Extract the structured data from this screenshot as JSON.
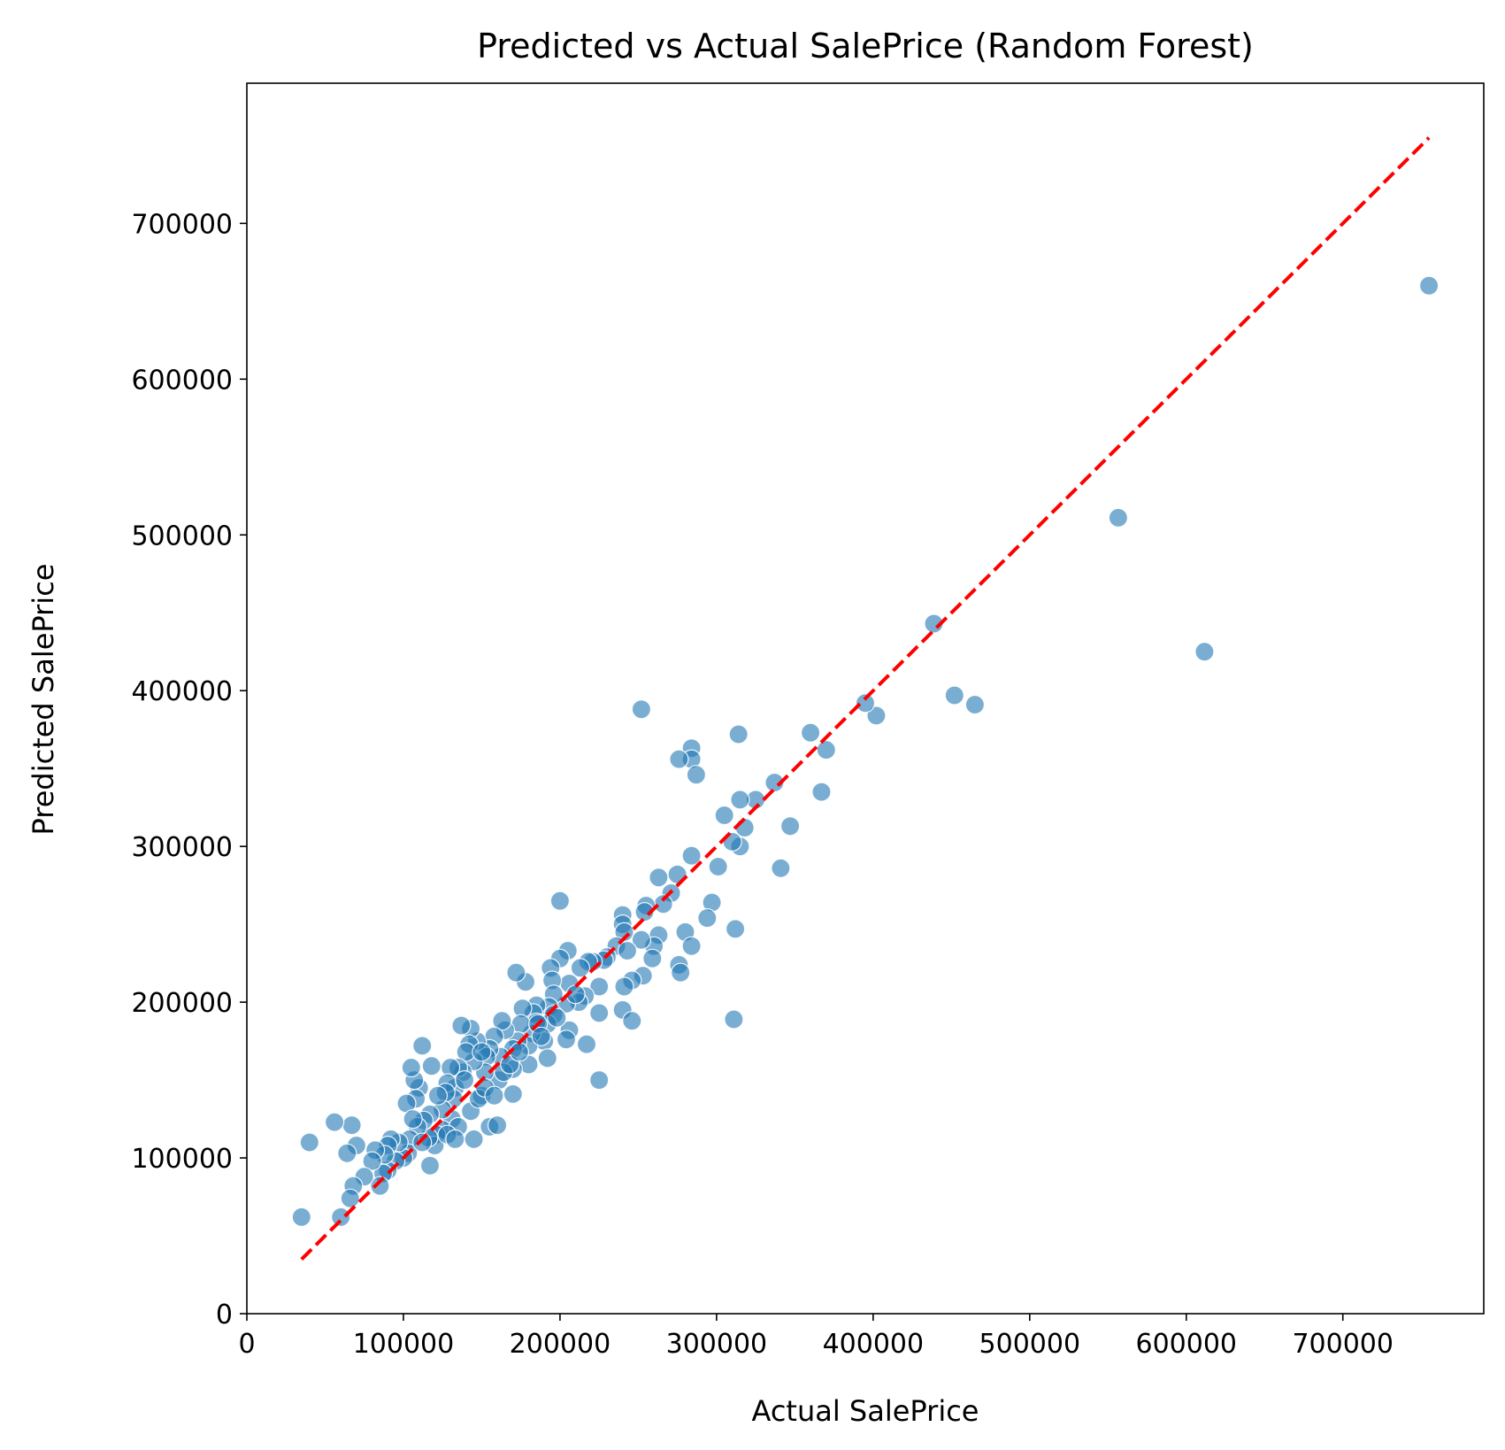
{
  "chart_data": {
    "type": "scatter",
    "title": "Predicted vs Actual SalePrice (Random Forest)",
    "xlabel": "Actual SalePrice",
    "ylabel": "Predicted SalePrice",
    "xlim": [
      0,
      790000
    ],
    "ylim": [
      0,
      790000
    ],
    "xticks": [
      "0",
      "100000",
      "200000",
      "300000",
      "400000",
      "500000",
      "600000",
      "700000"
    ],
    "yticks": [
      "0",
      "100000",
      "200000",
      "300000",
      "400000",
      "500000",
      "600000",
      "700000"
    ],
    "grid": false,
    "point_color": "#1f77b4",
    "point_opacity": 0.6,
    "reference_line": {
      "x": [
        34900,
        755000
      ],
      "y": [
        34900,
        755000
      ],
      "color": "#ff0000",
      "style": "dashed"
    },
    "points": [
      [
        755000,
        660000
      ],
      [
        556581,
        511000
      ],
      [
        611657,
        425000
      ],
      [
        438780,
        443000
      ],
      [
        451950,
        397000
      ],
      [
        465000,
        391000
      ],
      [
        402000,
        384000
      ],
      [
        395000,
        392000
      ],
      [
        370000,
        362000
      ],
      [
        360000,
        373000
      ],
      [
        367000,
        335000
      ],
      [
        347000,
        313000
      ],
      [
        337000,
        341000
      ],
      [
        325000,
        330000
      ],
      [
        315000,
        330000
      ],
      [
        318000,
        312000
      ],
      [
        315000,
        300000
      ],
      [
        310000,
        303000
      ],
      [
        341000,
        286000
      ],
      [
        314000,
        372000
      ],
      [
        284000,
        363000
      ],
      [
        284000,
        356000
      ],
      [
        287000,
        346000
      ],
      [
        276000,
        356000
      ],
      [
        252000,
        388000
      ],
      [
        305000,
        320000
      ],
      [
        301000,
        287000
      ],
      [
        284000,
        294000
      ],
      [
        275000,
        282000
      ],
      [
        271000,
        270000
      ],
      [
        263000,
        280000
      ],
      [
        266000,
        263000
      ],
      [
        297000,
        264000
      ],
      [
        294000,
        254000
      ],
      [
        312000,
        247000
      ],
      [
        311000,
        189000
      ],
      [
        280000,
        245000
      ],
      [
        284000,
        236000
      ],
      [
        276000,
        224000
      ],
      [
        277000,
        219000
      ],
      [
        263000,
        243000
      ],
      [
        260000,
        236000
      ],
      [
        259000,
        228000
      ],
      [
        255000,
        262000
      ],
      [
        254000,
        258000
      ],
      [
        252000,
        240000
      ],
      [
        253000,
        217000
      ],
      [
        246000,
        214000
      ],
      [
        240000,
        256000
      ],
      [
        240000,
        250000
      ],
      [
        241000,
        245000
      ],
      [
        236000,
        236000
      ],
      [
        243000,
        233000
      ],
      [
        241000,
        210000
      ],
      [
        240000,
        195000
      ],
      [
        246000,
        188000
      ],
      [
        230000,
        229000
      ],
      [
        228000,
        227000
      ],
      [
        225000,
        210000
      ],
      [
        225000,
        193000
      ],
      [
        225000,
        150000
      ],
      [
        221000,
        226000
      ],
      [
        218000,
        226000
      ],
      [
        213000,
        222000
      ],
      [
        216000,
        204000
      ],
      [
        212000,
        200000
      ],
      [
        217000,
        173000
      ],
      [
        205000,
        233000
      ],
      [
        200000,
        228000
      ],
      [
        200000,
        265000
      ],
      [
        206000,
        212000
      ],
      [
        204000,
        199000
      ],
      [
        206000,
        182000
      ],
      [
        204000,
        176000
      ],
      [
        194000,
        222000
      ],
      [
        195000,
        214000
      ],
      [
        196000,
        205000
      ],
      [
        193000,
        197000
      ],
      [
        196000,
        192000
      ],
      [
        192000,
        186000
      ],
      [
        190000,
        175000
      ],
      [
        192000,
        164000
      ],
      [
        185000,
        198000
      ],
      [
        183000,
        193000
      ],
      [
        185000,
        187000
      ],
      [
        182000,
        180000
      ],
      [
        180000,
        172000
      ],
      [
        180000,
        160000
      ],
      [
        178000,
        213000
      ],
      [
        176000,
        196000
      ],
      [
        175000,
        186000
      ],
      [
        173000,
        175000
      ],
      [
        172000,
        219000
      ],
      [
        170000,
        170000
      ],
      [
        170000,
        157000
      ],
      [
        170000,
        141000
      ],
      [
        165000,
        182000
      ],
      [
        163000,
        188000
      ],
      [
        162000,
        165000
      ],
      [
        161000,
        150000
      ],
      [
        158000,
        178000
      ],
      [
        155000,
        170000
      ],
      [
        153000,
        165000
      ],
      [
        152000,
        155000
      ],
      [
        150000,
        140000
      ],
      [
        155000,
        120000
      ],
      [
        160000,
        121000
      ],
      [
        147000,
        175000
      ],
      [
        145000,
        162000
      ],
      [
        143000,
        183000
      ],
      [
        142000,
        173000
      ],
      [
        140000,
        168000
      ],
      [
        138000,
        155000
      ],
      [
        137000,
        185000
      ],
      [
        135000,
        158000
      ],
      [
        133000,
        145000
      ],
      [
        132000,
        138000
      ],
      [
        131000,
        125000
      ],
      [
        130000,
        158000
      ],
      [
        128000,
        148000
      ],
      [
        127000,
        142000
      ],
      [
        125000,
        131000
      ],
      [
        125000,
        118000
      ],
      [
        122000,
        140000
      ],
      [
        121000,
        115000
      ],
      [
        120000,
        108000
      ],
      [
        118000,
        159000
      ],
      [
        117000,
        128000
      ],
      [
        116000,
        113000
      ],
      [
        117000,
        95000
      ],
      [
        113000,
        124000
      ],
      [
        112000,
        172000
      ],
      [
        110000,
        145000
      ],
      [
        109000,
        120000
      ],
      [
        108000,
        138000
      ],
      [
        107000,
        150000
      ],
      [
        105000,
        158000
      ],
      [
        104000,
        112000
      ],
      [
        103000,
        103000
      ],
      [
        102000,
        135000
      ],
      [
        100000,
        100000
      ],
      [
        97000,
        110000
      ],
      [
        95000,
        98000
      ],
      [
        92000,
        112000
      ],
      [
        90000,
        108000
      ],
      [
        90000,
        92000
      ],
      [
        88000,
        102000
      ],
      [
        87000,
        90000
      ],
      [
        85000,
        82000
      ],
      [
        82000,
        105000
      ],
      [
        80000,
        98000
      ],
      [
        75000,
        88000
      ],
      [
        70000,
        108000
      ],
      [
        68000,
        82000
      ],
      [
        67000,
        121000
      ],
      [
        66000,
        74000
      ],
      [
        64000,
        103000
      ],
      [
        60000,
        62000
      ],
      [
        56000,
        123000
      ],
      [
        40000,
        110000
      ],
      [
        34900,
        62000
      ],
      [
        145000,
        112000
      ],
      [
        143000,
        130000
      ],
      [
        148000,
        138000
      ],
      [
        152000,
        145000
      ],
      [
        158000,
        140000
      ],
      [
        164000,
        155000
      ],
      [
        168000,
        160000
      ],
      [
        186000,
        186000
      ],
      [
        198000,
        190000
      ],
      [
        210000,
        205000
      ],
      [
        135000,
        120000
      ],
      [
        128000,
        115000
      ],
      [
        112000,
        110000
      ],
      [
        106000,
        125000
      ],
      [
        139000,
        150000
      ],
      [
        150000,
        168000
      ],
      [
        188000,
        178000
      ],
      [
        174000,
        168000
      ],
      [
        133000,
        112000
      ]
    ]
  }
}
